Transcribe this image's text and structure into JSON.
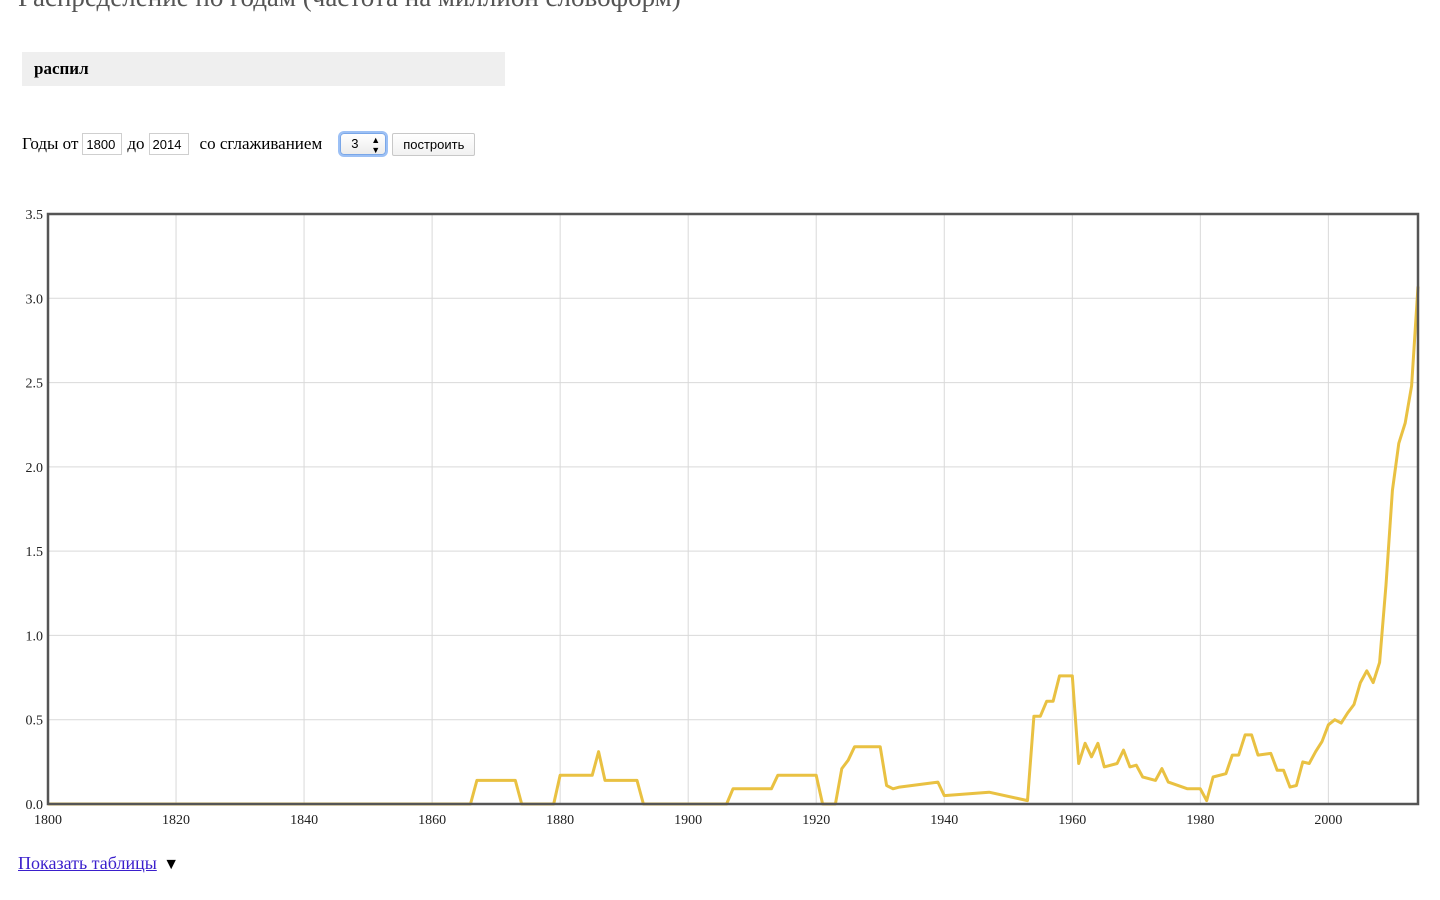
{
  "page": {
    "title": "Распределение по годам (частота на миллион словоформ)"
  },
  "query": {
    "word": "распил"
  },
  "controls": {
    "years_from_label": "Годы от",
    "year_from": "1800",
    "years_to_label": "до",
    "year_to": "2014",
    "smoothing_label": "со сглаживанием",
    "smoothing_value": "3",
    "build_button": "построить"
  },
  "footer": {
    "show_tables_link": "Показать таблицы",
    "toggle_symbol": "▼"
  },
  "colors": {
    "line": "#e9c142",
    "grid": "#d9d9d9",
    "frame": "#555555"
  },
  "chart_data": {
    "type": "line",
    "title": "",
    "xlabel": "",
    "ylabel": "",
    "xlim": [
      1800,
      2014
    ],
    "ylim": [
      0,
      3.5
    ],
    "x_ticks": [
      1800,
      1820,
      1840,
      1860,
      1880,
      1900,
      1920,
      1940,
      1960,
      1980,
      2000
    ],
    "x_tick_labels": [
      "1800",
      "1820",
      "1840",
      "1860",
      "1880",
      "1900",
      "1920",
      "1940",
      "1960",
      "1980",
      "2000"
    ],
    "y_ticks": [
      0,
      0.5,
      1,
      1.5,
      2,
      2.5,
      3,
      3.5
    ],
    "y_tick_labels": [
      "0.0",
      "0.5",
      "1.0",
      "1.5",
      "2.0",
      "2.5",
      "3.0",
      "3.5"
    ],
    "grid": true,
    "legend": "none",
    "series": [
      {
        "points": [
          [
            1800,
            0
          ],
          [
            1866,
            0
          ],
          [
            1867,
            0.14
          ],
          [
            1873,
            0.14
          ],
          [
            1874,
            0
          ],
          [
            1879,
            0
          ],
          [
            1880,
            0.17
          ],
          [
            1885,
            0.17
          ],
          [
            1886,
            0.31
          ],
          [
            1887,
            0.14
          ],
          [
            1892,
            0.14
          ],
          [
            1893,
            0
          ],
          [
            1906,
            0
          ],
          [
            1907,
            0.09
          ],
          [
            1913,
            0.09
          ],
          [
            1914,
            0.17
          ],
          [
            1920,
            0.17
          ],
          [
            1921,
            0
          ],
          [
            1923,
            0
          ],
          [
            1924,
            0.21
          ],
          [
            1925,
            0.26
          ],
          [
            1926,
            0.34
          ],
          [
            1930,
            0.34
          ],
          [
            1931,
            0.11
          ],
          [
            1932,
            0.09
          ],
          [
            1933,
            0.1
          ],
          [
            1939,
            0.13
          ],
          [
            1940,
            0.05
          ],
          [
            1947,
            0.07
          ],
          [
            1953,
            0.02
          ],
          [
            1954,
            0.52
          ],
          [
            1955,
            0.52
          ],
          [
            1956,
            0.61
          ],
          [
            1957,
            0.61
          ],
          [
            1958,
            0.76
          ],
          [
            1960,
            0.76
          ],
          [
            1961,
            0.24
          ],
          [
            1962,
            0.36
          ],
          [
            1963,
            0.28
          ],
          [
            1964,
            0.36
          ],
          [
            1965,
            0.22
          ],
          [
            1967,
            0.24
          ],
          [
            1968,
            0.32
          ],
          [
            1969,
            0.22
          ],
          [
            1970,
            0.23
          ],
          [
            1971,
            0.16
          ],
          [
            1973,
            0.14
          ],
          [
            1974,
            0.21
          ],
          [
            1975,
            0.13
          ],
          [
            1978,
            0.09
          ],
          [
            1980,
            0.09
          ],
          [
            1981,
            0.02
          ],
          [
            1982,
            0.16
          ],
          [
            1984,
            0.18
          ],
          [
            1985,
            0.29
          ],
          [
            1986,
            0.29
          ],
          [
            1987,
            0.41
          ],
          [
            1988,
            0.41
          ],
          [
            1989,
            0.29
          ],
          [
            1991,
            0.3
          ],
          [
            1992,
            0.2
          ],
          [
            1993,
            0.2
          ],
          [
            1994,
            0.1
          ],
          [
            1995,
            0.11
          ],
          [
            1996,
            0.25
          ],
          [
            1997,
            0.24
          ],
          [
            1998,
            0.31
          ],
          [
            1999,
            0.37
          ],
          [
            2000,
            0.47
          ],
          [
            2001,
            0.5
          ],
          [
            2002,
            0.48
          ],
          [
            2003,
            0.54
          ],
          [
            2004,
            0.59
          ],
          [
            2005,
            0.72
          ],
          [
            2006,
            0.79
          ],
          [
            2007,
            0.72
          ],
          [
            2008,
            0.84
          ],
          [
            2009,
            1.3
          ],
          [
            2010,
            1.86
          ],
          [
            2011,
            2.14
          ],
          [
            2012,
            2.26
          ],
          [
            2013,
            2.48
          ],
          [
            2014,
            3.07
          ]
        ]
      }
    ]
  }
}
